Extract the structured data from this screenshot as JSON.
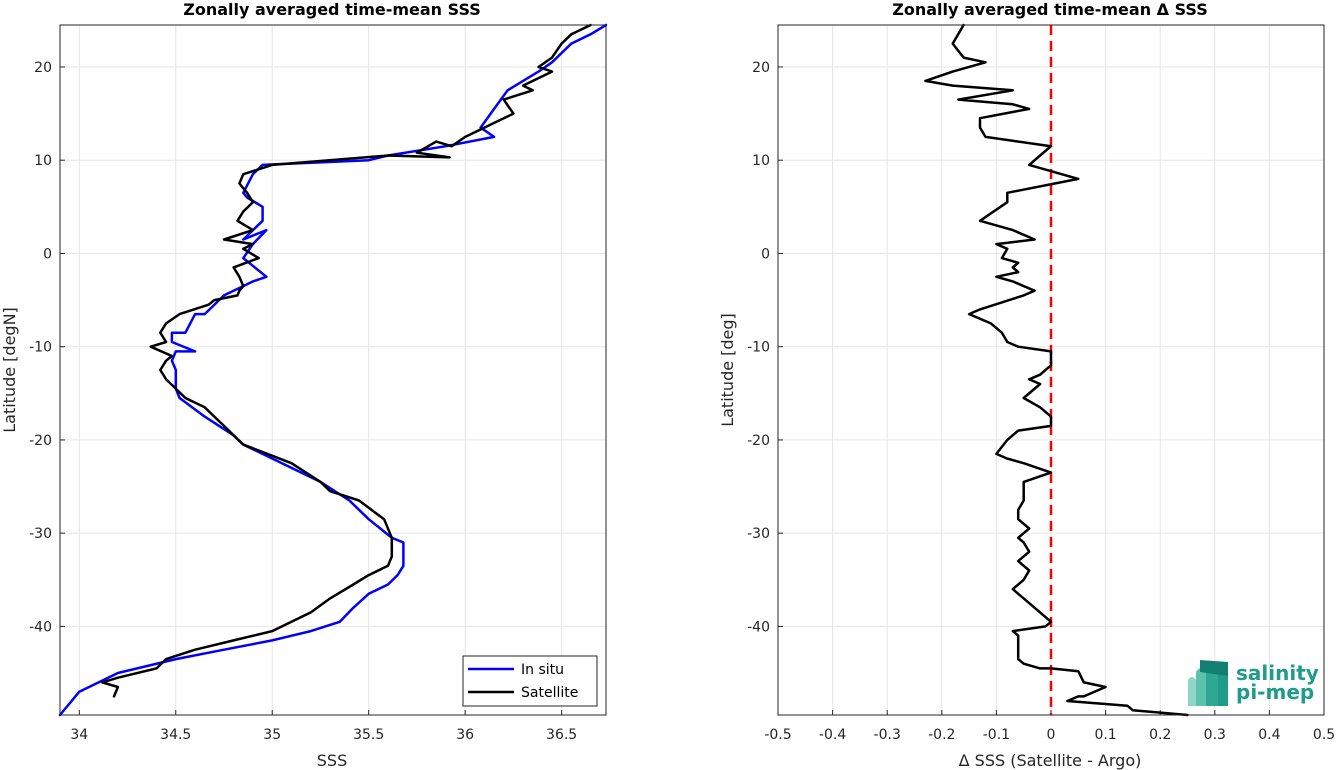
{
  "chart_data": [
    {
      "type": "line",
      "title": "Zonally averaged time-mean SSS",
      "xlabel": "SSS",
      "ylabel": "Latitude [degN]",
      "xlim": [
        33.9,
        36.73
      ],
      "ylim": [
        -49.5,
        24.5
      ],
      "xticks": [
        34,
        34.5,
        35,
        35.5,
        36,
        36.5
      ],
      "yticks": [
        -40,
        -30,
        -20,
        -10,
        0,
        10,
        20
      ],
      "grid": true,
      "legend_position": "bottom-right",
      "series": [
        {
          "name": "In situ",
          "color": "#0000ff",
          "x": [
            36.73,
            36.65,
            36.55,
            36.45,
            36.38,
            36.3,
            36.22,
            36.15,
            36.08,
            36.15,
            35.9,
            35.6,
            35.5,
            34.95,
            34.9,
            34.85,
            34.87,
            34.95,
            34.95,
            34.85,
            34.97,
            34.9,
            34.85,
            34.97,
            34.9,
            34.85,
            34.75,
            34.65,
            34.6,
            34.55,
            34.48,
            34.48,
            34.6,
            34.5,
            34.48,
            34.5,
            34.5,
            34.52,
            34.65,
            34.8,
            34.85,
            34.95,
            35.1,
            35.25,
            35.4,
            35.5,
            35.62,
            35.68,
            35.68,
            35.65,
            35.6,
            35.5,
            35.42,
            35.35,
            35.2,
            35.0,
            34.75,
            34.5,
            34.2,
            34.0,
            33.9
          ],
          "y": [
            24.5,
            23.5,
            22.5,
            20.5,
            19.5,
            18.5,
            17.5,
            15.5,
            13.5,
            12.5,
            11.5,
            10.5,
            10.0,
            9.5,
            8.5,
            6.5,
            6.0,
            5.0,
            3.5,
            1.5,
            2.5,
            1.0,
            -0.5,
            -2.5,
            -3.0,
            -3.5,
            -4.5,
            -6.5,
            -6.5,
            -8.5,
            -8.5,
            -9.5,
            -10.5,
            -10.5,
            -11.5,
            -12.5,
            -14.5,
            -15.5,
            -17.5,
            -19.5,
            -20.5,
            -21.5,
            -23.0,
            -24.5,
            -26.5,
            -28.5,
            -30.5,
            -31.0,
            -33.5,
            -34.5,
            -35.5,
            -36.5,
            -38.0,
            -39.5,
            -40.5,
            -41.5,
            -42.5,
            -43.5,
            -45.0,
            -47.0,
            -49.5
          ]
        },
        {
          "name": "Satellite",
          "color": "#000000",
          "x": [
            36.65,
            36.55,
            36.5,
            36.45,
            36.38,
            36.45,
            36.3,
            36.35,
            36.2,
            36.25,
            36.15,
            36.1,
            36.05,
            36.0,
            35.93,
            35.85,
            35.75,
            35.92,
            35.6,
            35.0,
            34.85,
            34.83,
            34.87,
            34.9,
            34.85,
            34.82,
            34.9,
            34.75,
            34.9,
            34.85,
            34.93,
            34.8,
            34.83,
            34.85,
            34.83,
            34.82,
            34.7,
            34.67,
            34.52,
            34.45,
            34.42,
            34.45,
            34.37,
            34.48,
            34.45,
            34.42,
            34.45,
            34.5,
            34.55,
            34.65,
            34.7,
            34.75,
            34.8,
            34.85,
            35.1,
            35.25,
            35.3,
            35.45,
            35.58,
            35.62,
            35.62,
            35.6,
            35.5,
            35.42,
            35.3,
            35.2,
            35.0,
            34.8,
            34.6,
            34.45,
            34.4,
            34.2,
            34.12,
            34.2,
            34.18
          ],
          "y": [
            24.5,
            23.5,
            22.5,
            21.0,
            20.0,
            19.5,
            18.0,
            17.5,
            16.5,
            15.0,
            14.0,
            13.5,
            13.0,
            12.5,
            11.5,
            12.0,
            10.8,
            10.3,
            10.5,
            9.5,
            8.5,
            7.5,
            6.5,
            5.5,
            4.5,
            3.5,
            2.5,
            1.5,
            1.0,
            0.5,
            -0.5,
            -1.5,
            -2.5,
            -3.5,
            -4.0,
            -4.5,
            -5.0,
            -5.5,
            -6.5,
            -7.5,
            -8.5,
            -9.5,
            -10.0,
            -11.0,
            -11.5,
            -12.5,
            -13.5,
            -14.5,
            -15.5,
            -16.5,
            -17.5,
            -18.5,
            -19.5,
            -20.5,
            -22.5,
            -24.5,
            -25.5,
            -26.5,
            -28.5,
            -30.5,
            -32.5,
            -33.5,
            -34.5,
            -35.5,
            -37.0,
            -38.5,
            -40.5,
            -41.5,
            -42.5,
            -43.5,
            -44.5,
            -45.5,
            -46.0,
            -46.5,
            -47.5
          ]
        }
      ]
    },
    {
      "type": "line",
      "title": "Zonally averaged time-mean Δ SSS",
      "xlabel": "Δ SSS (Satellite - Argo)",
      "ylabel": "Latitude [deg]",
      "xlim": [
        -0.5,
        0.5
      ],
      "ylim": [
        -49.5,
        24.5
      ],
      "xticks": [
        -0.5,
        -0.4,
        -0.3,
        -0.2,
        -0.1,
        0,
        0.1,
        0.2,
        0.3,
        0.4,
        0.5
      ],
      "yticks": [
        -40,
        -30,
        -20,
        -10,
        0,
        10,
        20
      ],
      "grid": true,
      "reference_line": {
        "x": 0,
        "color": "#ff0000",
        "style": "dashed"
      },
      "series": [
        {
          "color": "#000000",
          "x": [
            -0.16,
            -0.17,
            -0.18,
            -0.16,
            -0.12,
            -0.18,
            -0.23,
            -0.18,
            -0.07,
            -0.17,
            -0.07,
            -0.04,
            -0.13,
            -0.13,
            -0.12,
            0.0,
            -0.02,
            -0.04,
            0.05,
            -0.08,
            -0.08,
            -0.13,
            -0.07,
            -0.03,
            -0.1,
            -0.08,
            -0.09,
            -0.06,
            -0.07,
            -0.06,
            -0.1,
            -0.07,
            -0.05,
            -0.03,
            -0.05,
            -0.13,
            -0.15,
            -0.11,
            -0.09,
            -0.08,
            -0.06,
            0.0,
            0.0,
            -0.01,
            -0.02,
            -0.04,
            -0.02,
            -0.05,
            -0.02,
            0.0,
            0.0,
            -0.06,
            -0.08,
            -0.1,
            -0.08,
            -0.05,
            0.0,
            -0.05,
            -0.05,
            -0.05,
            -0.06,
            -0.06,
            -0.04,
            -0.06,
            -0.05,
            -0.04,
            -0.06,
            -0.04,
            -0.05,
            -0.07,
            -0.06,
            -0.05,
            -0.02,
            -0.0,
            -0.01,
            -0.07,
            -0.06,
            -0.06,
            -0.06,
            -0.05,
            -0.02,
            0.0,
            0.05,
            0.06,
            0.1,
            0.06,
            0.05,
            0.03,
            0.14,
            0.15,
            0.25
          ],
          "y": [
            24.5,
            23.5,
            22.5,
            21.0,
            20.5,
            19.5,
            18.5,
            18.0,
            17.5,
            16.5,
            16.0,
            15.5,
            14.5,
            13.5,
            12.5,
            11.5,
            10.5,
            9.5,
            8.0,
            6.5,
            5.5,
            3.5,
            2.5,
            1.5,
            1.0,
            0.5,
            -0.5,
            -1.0,
            -1.5,
            -2.0,
            -2.5,
            -3.0,
            -3.5,
            -4.0,
            -4.5,
            -6.0,
            -6.5,
            -7.5,
            -8.5,
            -9.5,
            -10.0,
            -10.5,
            -12.0,
            -12.5,
            -13.0,
            -13.5,
            -14.0,
            -15.5,
            -16.5,
            -17.5,
            -18.5,
            -19.0,
            -20.0,
            -21.5,
            -22.0,
            -22.5,
            -23.5,
            -24.5,
            -25.5,
            -26.5,
            -27.5,
            -28.5,
            -29.5,
            -30.5,
            -31.0,
            -32.0,
            -33.0,
            -34.0,
            -35.0,
            -36.0,
            -36.5,
            -37.0,
            -38.5,
            -39.5,
            -40.0,
            -40.5,
            -41.0,
            -42.5,
            -43.5,
            -44.0,
            -44.5,
            -44.5,
            -44.8,
            -46.0,
            -46.5,
            -47.5,
            -47.5,
            -48.0,
            -48.5,
            -49.0,
            -49.5
          ]
        }
      ]
    }
  ],
  "legend": {
    "items": [
      {
        "label": "In situ",
        "color": "#0000ff"
      },
      {
        "label": "Satellite",
        "color": "#000000"
      }
    ]
  },
  "logo": {
    "line1": "salinity",
    "line2": "pi-mep",
    "color": "#1f9b8a"
  }
}
